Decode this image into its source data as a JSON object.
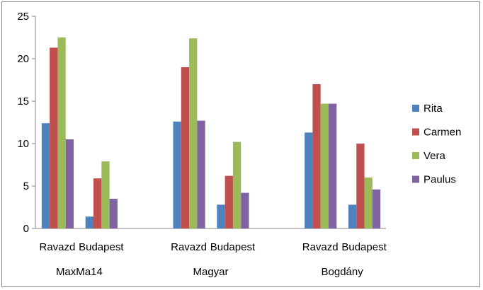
{
  "chart_data": {
    "type": "bar",
    "title": "",
    "xlabel": "",
    "ylabel": "",
    "ylim": [
      0,
      25
    ],
    "yticks": [
      0,
      5,
      10,
      15,
      20,
      25
    ],
    "grid": false,
    "legend_position": "right",
    "categories": [
      "Ravazd",
      "Budapest",
      "Ravazd",
      "Budapest",
      "Ravazd",
      "Budapest"
    ],
    "groups": [
      "MaxMa14",
      "Magyar",
      "Bogdány"
    ],
    "series": [
      {
        "name": "Rita",
        "color": "#4F81BD",
        "values": [
          12.4,
          1.4,
          12.6,
          2.8,
          11.3,
          2.8
        ]
      },
      {
        "name": "Carmen",
        "color": "#C0504D",
        "values": [
          21.3,
          5.9,
          19.0,
          6.2,
          17.0,
          10.0
        ]
      },
      {
        "name": "Vera",
        "color": "#9BBB59",
        "values": [
          22.5,
          7.9,
          22.4,
          10.2,
          14.7,
          6.0
        ]
      },
      {
        "name": "Paulus",
        "color": "#8064A2",
        "values": [
          10.5,
          3.5,
          12.7,
          4.2,
          14.7,
          4.6
        ]
      }
    ]
  }
}
